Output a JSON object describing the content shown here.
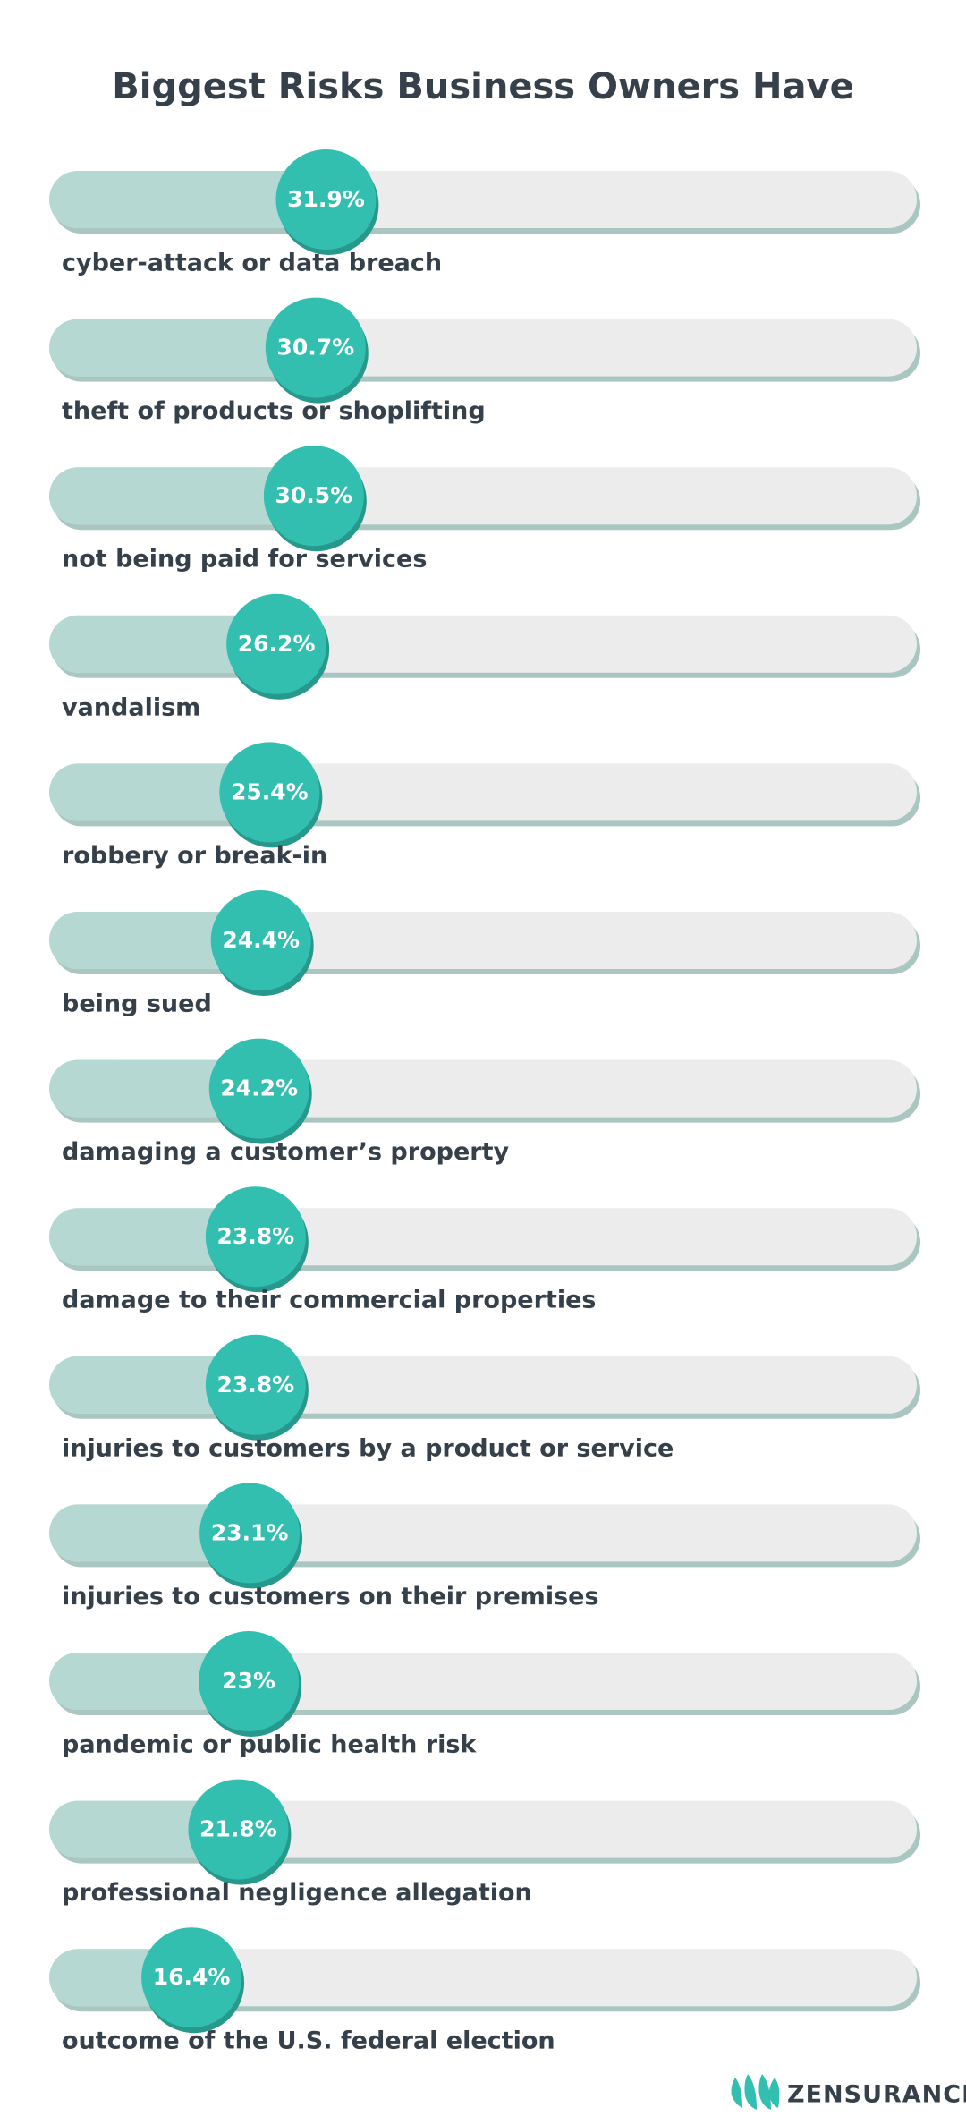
{
  "chart_data": {
    "type": "bar",
    "title": "Biggest Risks Business Owners Have",
    "categories": [
      "cyber-attack or data breach",
      "theft of products or shoplifting",
      "not being paid for services",
      "vandalism",
      "robbery or break-in",
      "being sued",
      "damaging a customer’s property",
      "damage to their commercial properties",
      "injuries to customers by a product or service",
      "injuries to customers on their premises",
      "pandemic or public health risk",
      "professional negligence allegation",
      "outcome of the U.S. federal election"
    ],
    "values": [
      31.9,
      30.7,
      30.5,
      26.2,
      25.4,
      24.4,
      24.2,
      23.8,
      23.8,
      23.1,
      23,
      21.8,
      16.4
    ],
    "value_labels": [
      "31.9%",
      "30.7%",
      "30.5%",
      "26.2%",
      "25.4%",
      "24.4%",
      "24.2%",
      "23.8%",
      "23.8%",
      "23.1%",
      "23%",
      "21.8%",
      "16.4%"
    ],
    "xlim": [
      0,
      100
    ],
    "color": "#33bfb0"
  },
  "brand": "ZENSURANCE"
}
